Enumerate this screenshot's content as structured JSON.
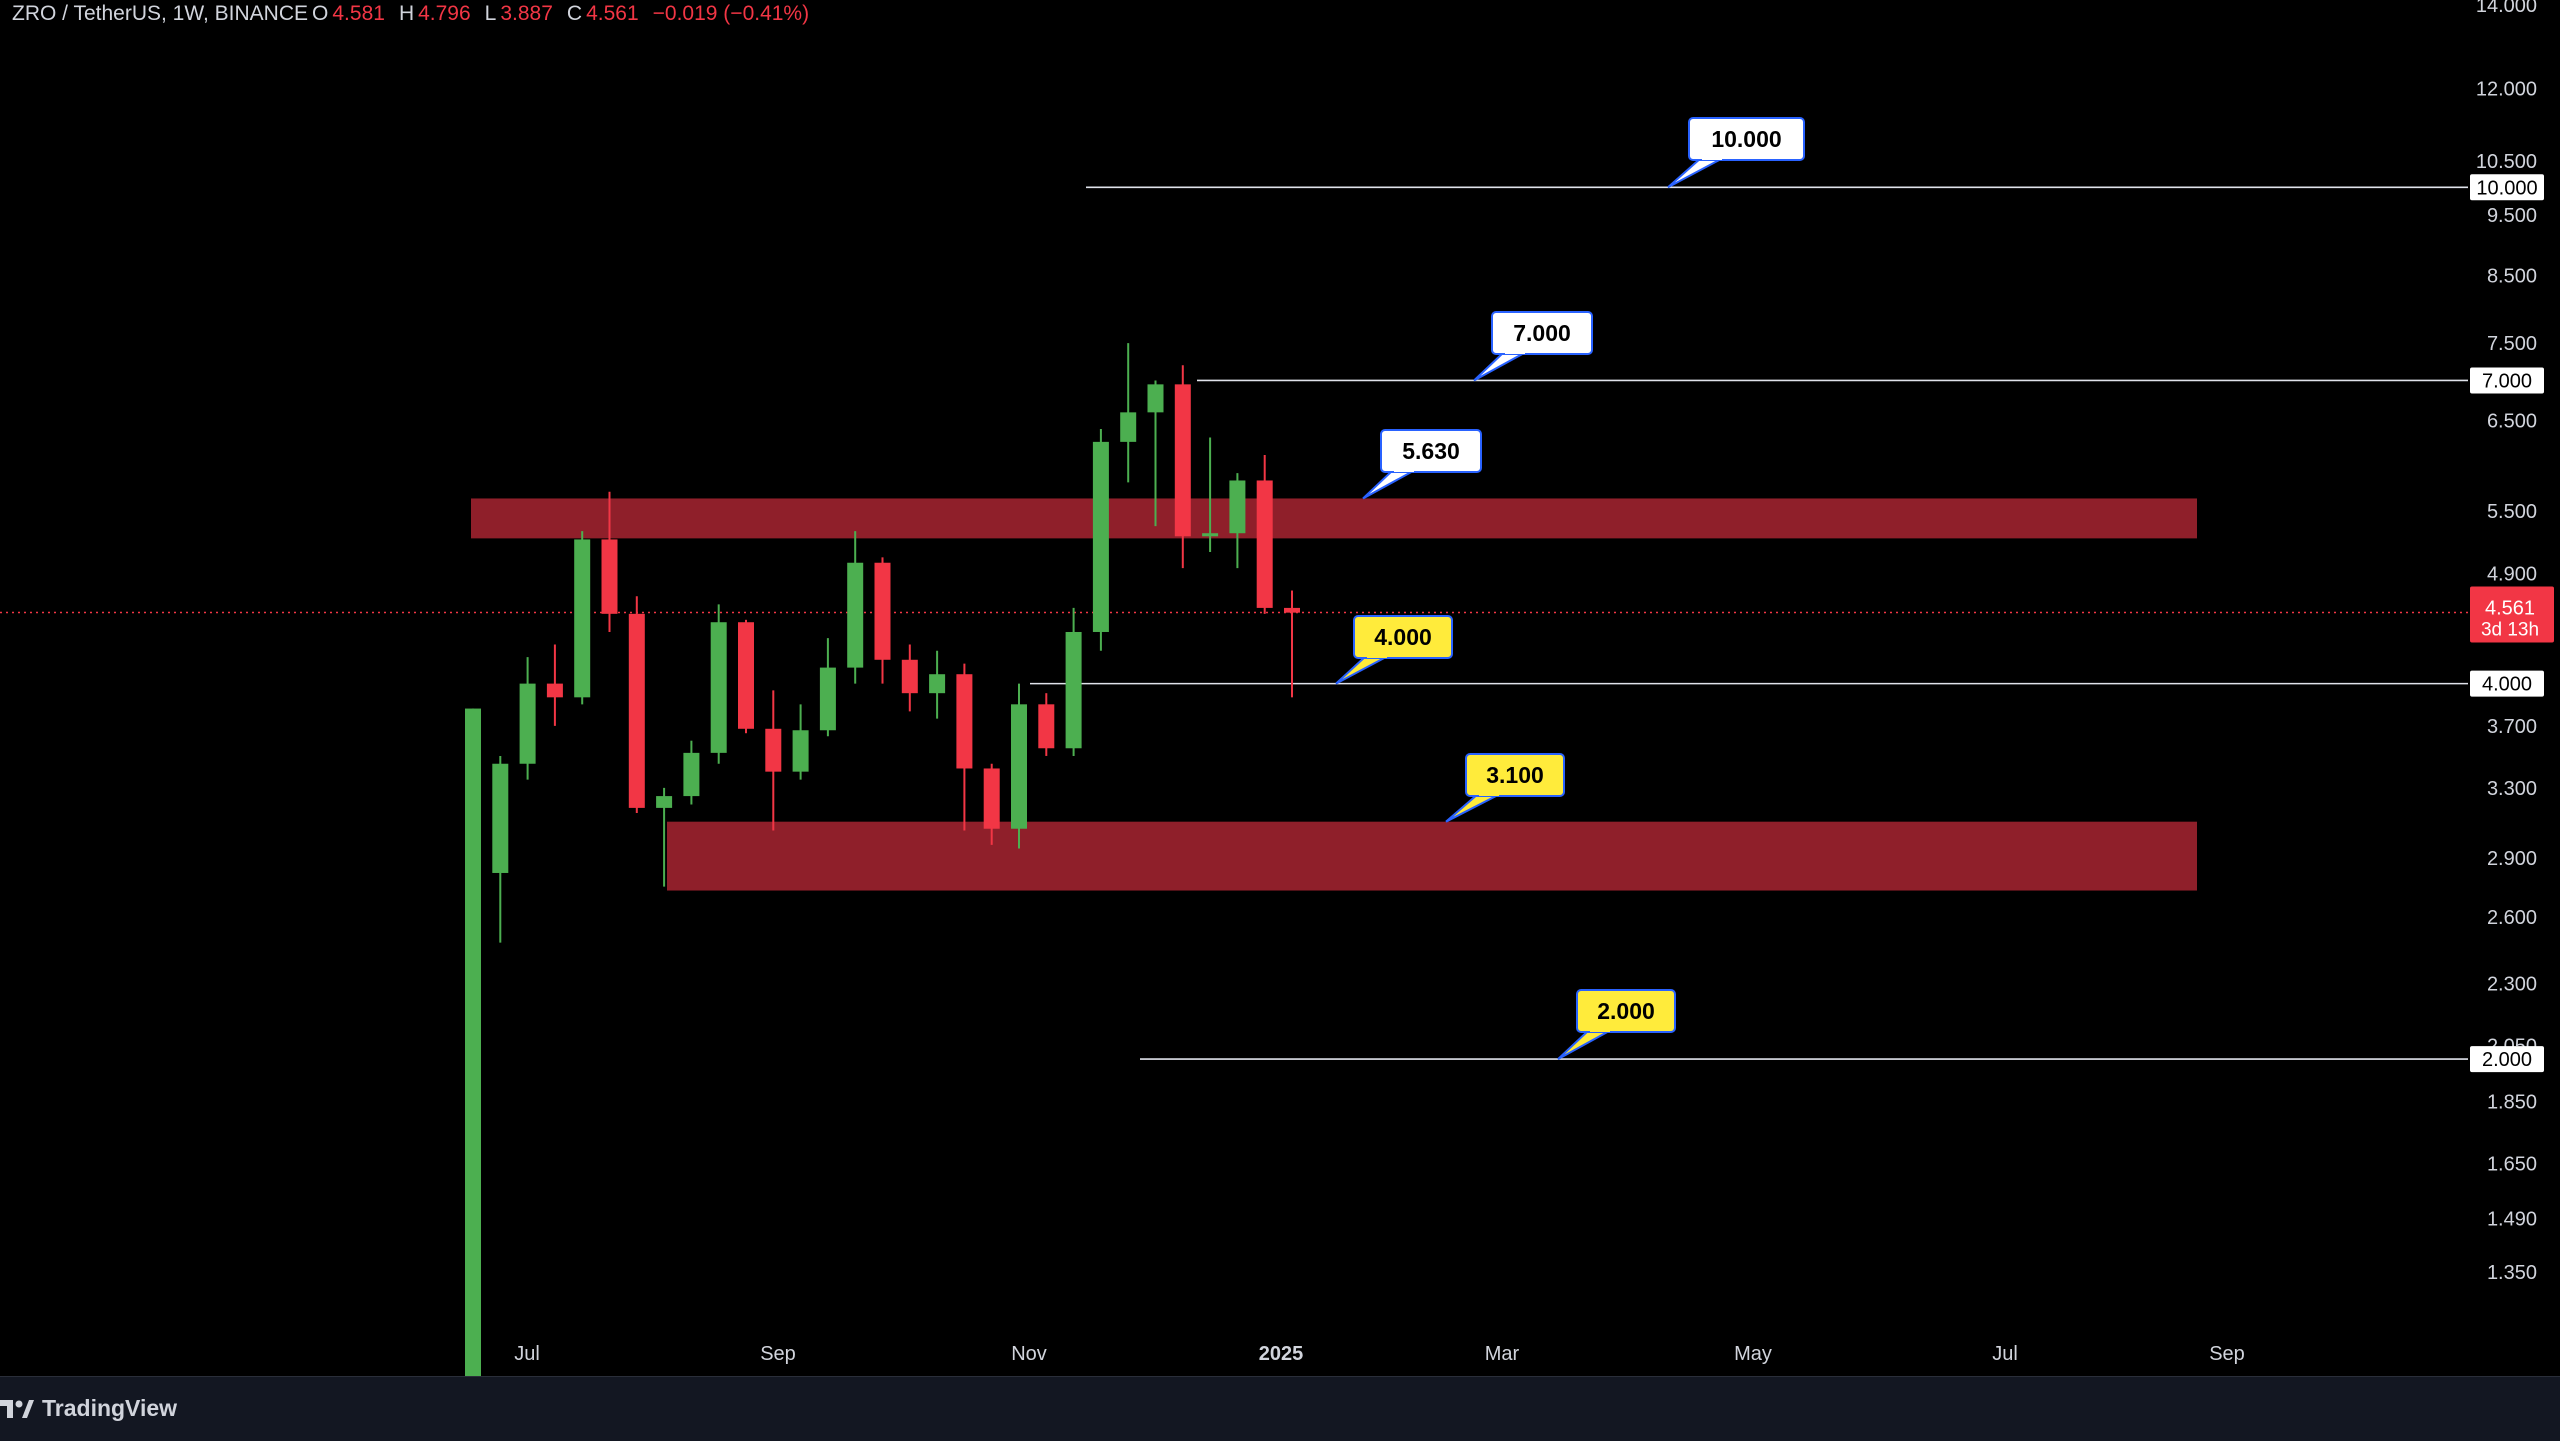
{
  "header": {
    "symbol": "ZRO / TetherUS, 1W, BINANCE",
    "o_label": "O",
    "o_value": "4.581",
    "h_label": "H",
    "h_value": "4.796",
    "l_label": "L",
    "l_value": "3.887",
    "c_label": "C",
    "c_value": "4.561",
    "change": "−0.019 (−0.41%)"
  },
  "branding": {
    "name": "TradingView",
    "icon": "tradingview-logo-icon"
  },
  "chart_data": {
    "type": "candlestick",
    "y_scale": "log",
    "y_ticks": [
      "14.000",
      "12.000",
      "10.500",
      "9.500",
      "8.500",
      "7.500",
      "6.500",
      "5.500",
      "4.900",
      "3.700",
      "3.300",
      "2.900",
      "2.600",
      "2.300",
      "2.050",
      "1.850",
      "1.650",
      "1.490",
      "1.350"
    ],
    "x_ticks": [
      "Jul",
      "Sep",
      "Nov",
      "2025",
      "Mar",
      "May",
      "Jul",
      "Sep"
    ],
    "current_price": {
      "value": 4.561,
      "label": "4.561",
      "countdown": "3d 13h",
      "color": "#f23645"
    },
    "candles": [
      {
        "o": 1.0,
        "h": 3.82,
        "l": 1.0,
        "c": 3.82
      },
      {
        "o": 2.82,
        "h": 3.5,
        "l": 2.48,
        "c": 3.45
      },
      {
        "o": 3.45,
        "h": 4.2,
        "l": 3.35,
        "c": 4.0
      },
      {
        "o": 4.0,
        "h": 4.3,
        "l": 3.7,
        "c": 3.9
      },
      {
        "o": 3.9,
        "h": 5.3,
        "l": 3.85,
        "c": 5.22
      },
      {
        "o": 5.22,
        "h": 5.7,
        "l": 4.4,
        "c": 4.55
      },
      {
        "o": 4.55,
        "h": 4.7,
        "l": 3.15,
        "c": 3.18
      },
      {
        "o": 3.18,
        "h": 3.3,
        "l": 2.75,
        "c": 3.25
      },
      {
        "o": 3.25,
        "h": 3.6,
        "l": 3.2,
        "c": 3.52
      },
      {
        "o": 3.52,
        "h": 4.63,
        "l": 3.45,
        "c": 4.48
      },
      {
        "o": 4.48,
        "h": 4.5,
        "l": 3.65,
        "c": 3.68
      },
      {
        "o": 3.68,
        "h": 3.95,
        "l": 3.05,
        "c": 3.4
      },
      {
        "o": 3.4,
        "h": 3.85,
        "l": 3.35,
        "c": 3.67
      },
      {
        "o": 3.67,
        "h": 4.35,
        "l": 3.63,
        "c": 4.12
      },
      {
        "o": 4.12,
        "h": 5.3,
        "l": 4.0,
        "c": 5.0
      },
      {
        "o": 5.0,
        "h": 5.05,
        "l": 4.0,
        "c": 4.18
      },
      {
        "o": 4.18,
        "h": 4.3,
        "l": 3.8,
        "c": 3.93
      },
      {
        "o": 3.93,
        "h": 4.25,
        "l": 3.75,
        "c": 4.07
      },
      {
        "o": 4.07,
        "h": 4.15,
        "l": 3.05,
        "c": 3.42
      },
      {
        "o": 3.42,
        "h": 3.45,
        "l": 2.97,
        "c": 3.06
      },
      {
        "o": 3.06,
        "h": 4.0,
        "l": 2.95,
        "c": 3.85
      },
      {
        "o": 3.85,
        "h": 3.93,
        "l": 3.5,
        "c": 3.55
      },
      {
        "o": 3.55,
        "h": 4.6,
        "l": 3.5,
        "c": 4.4
      },
      {
        "o": 4.4,
        "h": 6.4,
        "l": 4.25,
        "c": 6.25
      },
      {
        "o": 6.25,
        "h": 7.5,
        "l": 5.8,
        "c": 6.6
      },
      {
        "o": 6.6,
        "h": 7.0,
        "l": 5.35,
        "c": 6.95
      },
      {
        "o": 6.95,
        "h": 7.2,
        "l": 4.95,
        "c": 5.25
      },
      {
        "o": 5.25,
        "h": 6.3,
        "l": 5.1,
        "c": 5.28
      },
      {
        "o": 5.28,
        "h": 5.9,
        "l": 4.95,
        "c": 5.82
      },
      {
        "o": 5.82,
        "h": 6.1,
        "l": 4.55,
        "c": 4.6
      },
      {
        "o": 4.6,
        "h": 4.75,
        "l": 3.9,
        "c": 4.56
      }
    ],
    "horizontal_lines": [
      {
        "value": 10.0,
        "label": "10.000",
        "axis_label": "10.000",
        "style": "white"
      },
      {
        "value": 7.0,
        "label": "7.000",
        "axis_label": "7.000",
        "style": "white"
      },
      {
        "value": 4.0,
        "label": "4.000",
        "axis_label": "4.000",
        "style": "yellow"
      },
      {
        "value": 2.0,
        "label": "2.000",
        "axis_label": "2.000",
        "style": "yellow"
      }
    ],
    "zones": [
      {
        "top": 5.63,
        "bottom": 5.23,
        "color": "#8f1f2a"
      },
      {
        "top": 3.1,
        "bottom": 2.73,
        "color": "#8f1f2a"
      }
    ],
    "callouts": [
      {
        "label": "5.630",
        "value": 5.63,
        "style": "white"
      },
      {
        "label": "3.100",
        "value": 3.1,
        "style": "yellow"
      }
    ],
    "colors": {
      "up": "#4caf50",
      "down": "#f23645",
      "background": "#000000",
      "label_white": "#ffffff",
      "label_yellow": "#ffeb3b",
      "callout_border": "#2962ff"
    }
  }
}
